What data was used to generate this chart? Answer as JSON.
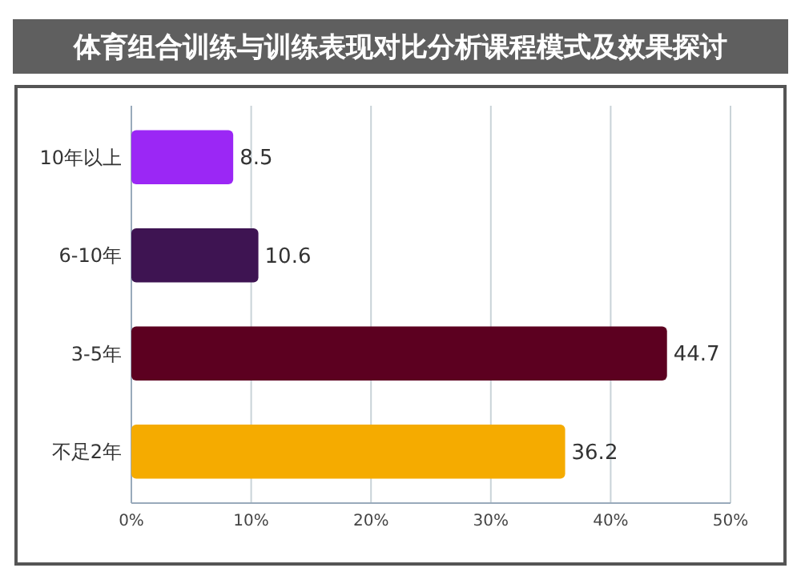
{
  "chart_data": {
    "type": "bar",
    "orientation": "horizontal",
    "title": "体育组合训练与训练表现对比分析课程模式及效果探讨",
    "categories": [
      "10年以上",
      "6-10年",
      "3-5年",
      "不足2年"
    ],
    "values": [
      8.5,
      10.6,
      44.7,
      36.2
    ],
    "colors": [
      "#9b27f5",
      "#3e1452",
      "#5c0020",
      "#f5ab00"
    ],
    "xlim": [
      0,
      50
    ],
    "xticks": [
      {
        "value": 0,
        "label": "0%"
      },
      {
        "value": 10,
        "label": "10%"
      },
      {
        "value": 20,
        "label": "20%"
      },
      {
        "value": 30,
        "label": "30%"
      },
      {
        "value": 40,
        "label": "40%"
      },
      {
        "value": 50,
        "label": "50%"
      }
    ],
    "grid": "x",
    "data_labels": true
  }
}
